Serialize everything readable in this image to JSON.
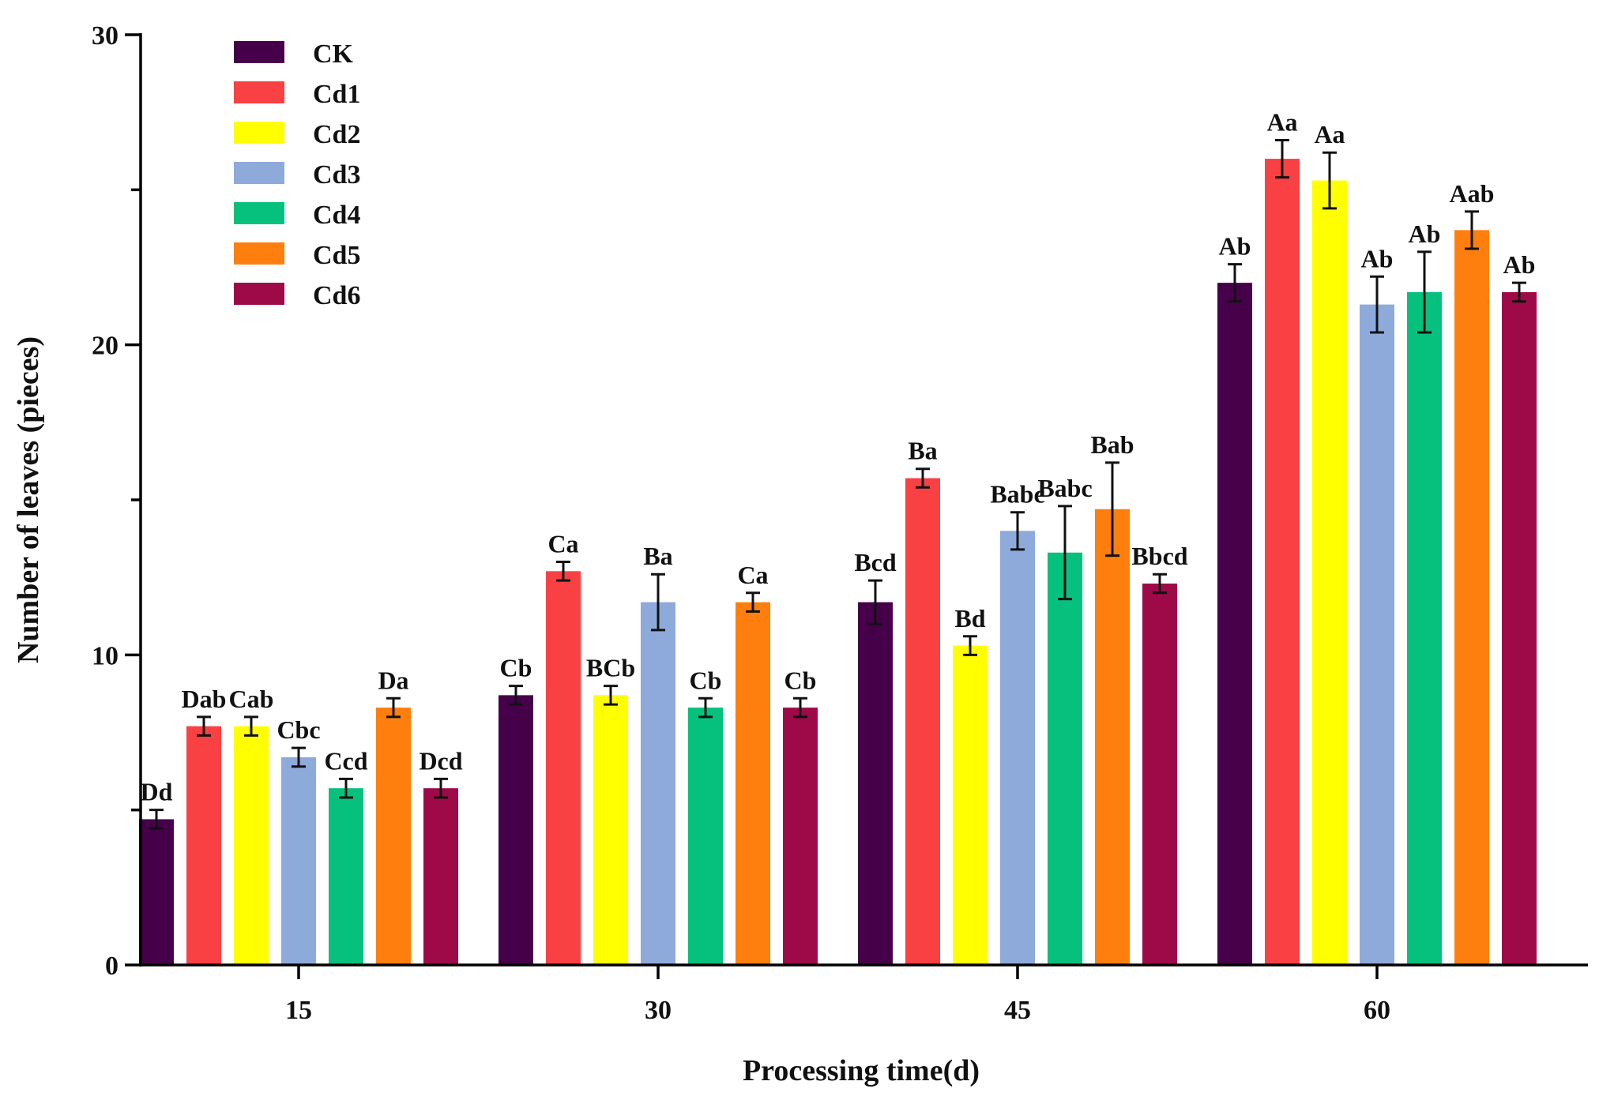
{
  "chart_data": {
    "type": "bar",
    "title": "",
    "xlabel": "Processing time(d)",
    "ylabel": "Number of leaves (pieces)",
    "ylim": [
      0,
      30
    ],
    "yticks": [
      "0",
      "10",
      "20",
      "30"
    ],
    "categories": [
      "15",
      "30",
      "45",
      "60"
    ],
    "legend_position": "top-left",
    "grid": false,
    "series": [
      {
        "name": "CK",
        "color": "#46004a",
        "values": [
          4.7,
          8.7,
          11.7,
          22.0
        ],
        "errors": [
          0.3,
          0.3,
          0.7,
          0.6
        ],
        "labels": [
          "Dd",
          "Cb",
          "Bcd",
          "Ab"
        ]
      },
      {
        "name": "Cd1",
        "color": "#f94144",
        "values": [
          7.7,
          12.7,
          15.7,
          26.0
        ],
        "errors": [
          0.3,
          0.3,
          0.3,
          0.6
        ],
        "labels": [
          "Dab",
          "Ca",
          "Ba",
          "Aa"
        ]
      },
      {
        "name": "Cd2",
        "color": "#ffff00",
        "values": [
          7.7,
          8.7,
          10.3,
          25.3
        ],
        "errors": [
          0.3,
          0.3,
          0.3,
          0.9
        ],
        "labels": [
          "Cab",
          "BCb",
          "Bd",
          "Aa"
        ]
      },
      {
        "name": "Cd3",
        "color": "#8eaadb",
        "values": [
          6.7,
          11.7,
          14.0,
          21.3
        ],
        "errors": [
          0.3,
          0.9,
          0.6,
          0.9
        ],
        "labels": [
          "Cbc",
          "Ba",
          "Babc",
          "Ab"
        ]
      },
      {
        "name": "Cd4",
        "color": "#06c17d",
        "values": [
          5.7,
          8.3,
          13.3,
          21.7
        ],
        "errors": [
          0.3,
          0.3,
          1.5,
          1.3
        ],
        "labels": [
          "Ccd",
          "Cb",
          "Babc",
          "Ab"
        ]
      },
      {
        "name": "Cd5",
        "color": "#ff7f0e",
        "values": [
          8.3,
          11.7,
          14.7,
          23.7
        ],
        "errors": [
          0.3,
          0.3,
          1.5,
          0.6
        ],
        "labels": [
          "Da",
          "Ca",
          "Bab",
          "Aab"
        ]
      },
      {
        "name": "Cd6",
        "color": "#9e0a48",
        "values": [
          5.7,
          8.3,
          12.3,
          21.7
        ],
        "errors": [
          0.3,
          0.3,
          0.3,
          0.3
        ],
        "labels": [
          "Dcd",
          "Cb",
          "Bbcd",
          "Ab"
        ]
      }
    ]
  }
}
